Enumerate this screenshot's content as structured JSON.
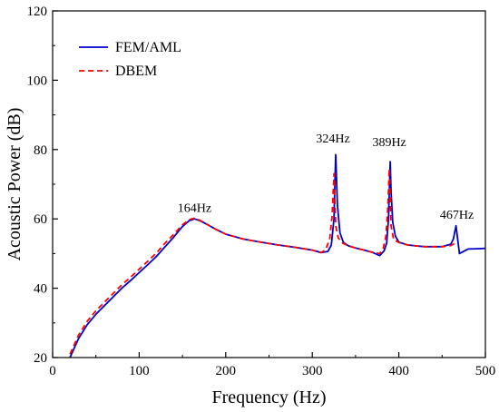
{
  "chart_data": {
    "type": "line",
    "xlabel": "Frequency (Hz)",
    "ylabel": "Acoustic Power (dB)",
    "xlim": [
      0,
      500
    ],
    "ylim": [
      20,
      120
    ],
    "xticks": [
      0,
      100,
      200,
      300,
      400,
      500
    ],
    "yticks": [
      20,
      40,
      60,
      80,
      100,
      120
    ],
    "grid": false,
    "legend_position": "top-left",
    "annotations": [
      {
        "text": "164Hz",
        "x": 164,
        "y": 62
      },
      {
        "text": "324Hz",
        "x": 324,
        "y": 82
      },
      {
        "text": "389Hz",
        "x": 389,
        "y": 81
      },
      {
        "text": "467Hz",
        "x": 467,
        "y": 60
      }
    ],
    "series": [
      {
        "name": "FEM/AML",
        "color": "#0000cc",
        "style": "solid",
        "x": [
          20,
          30,
          40,
          50,
          60,
          70,
          80,
          90,
          100,
          110,
          120,
          130,
          140,
          150,
          158,
          164,
          170,
          180,
          190,
          200,
          220,
          240,
          260,
          280,
          300,
          310,
          318,
          322,
          325,
          327,
          329,
          332,
          336,
          342,
          350,
          360,
          370,
          378,
          383,
          386,
          388,
          390,
          391,
          393,
          396,
          400,
          410,
          420,
          430,
          440,
          450,
          460,
          463,
          466,
          468,
          470,
          480,
          490,
          500
        ],
        "y": [
          20,
          25.5,
          29.5,
          32.5,
          35,
          37.5,
          40,
          42.2,
          44.5,
          46.8,
          49.2,
          52,
          54.8,
          57.8,
          59.5,
          60,
          59.5,
          58.2,
          56.8,
          55.6,
          54.2,
          53.3,
          52.5,
          51.8,
          51,
          50.3,
          50.6,
          52.5,
          60,
          78.5,
          64,
          56,
          53.2,
          52.2,
          51.6,
          51,
          50.3,
          49.4,
          50.8,
          53,
          60,
          76.5,
          68,
          59,
          55,
          53.3,
          52.5,
          52.2,
          52,
          52,
          52,
          52.7,
          54.2,
          58,
          54,
          50,
          51.3,
          51.4,
          51.5
        ]
      },
      {
        "name": "DBEM",
        "color": "#ff0000",
        "style": "dashed",
        "x": [
          20,
          30,
          40,
          50,
          60,
          70,
          80,
          90,
          100,
          110,
          120,
          130,
          140,
          150,
          158,
          164,
          170,
          180,
          190,
          200,
          220,
          240,
          260,
          280,
          300,
          310,
          315,
          320,
          323,
          325,
          327,
          330,
          335,
          342,
          350,
          360,
          370,
          378,
          382,
          385,
          387,
          389,
          391,
          394,
          400,
          410,
          420,
          430,
          440,
          450,
          460,
          465
        ],
        "y": [
          21,
          26.5,
          30.5,
          33.5,
          36,
          38.5,
          41,
          43.2,
          45.5,
          47.8,
          50.2,
          53,
          55.6,
          58.3,
          59.8,
          60.2,
          59.6,
          58.2,
          56.8,
          55.6,
          54.2,
          53.3,
          52.5,
          51.8,
          51,
          50.3,
          51,
          54,
          61,
          73,
          58,
          54.5,
          53,
          52.2,
          51.6,
          51,
          50.3,
          50,
          51.5,
          55,
          62,
          74.5,
          58,
          54,
          53.2,
          52.5,
          52.2,
          52,
          52,
          52,
          52.3,
          53
        ]
      }
    ]
  }
}
